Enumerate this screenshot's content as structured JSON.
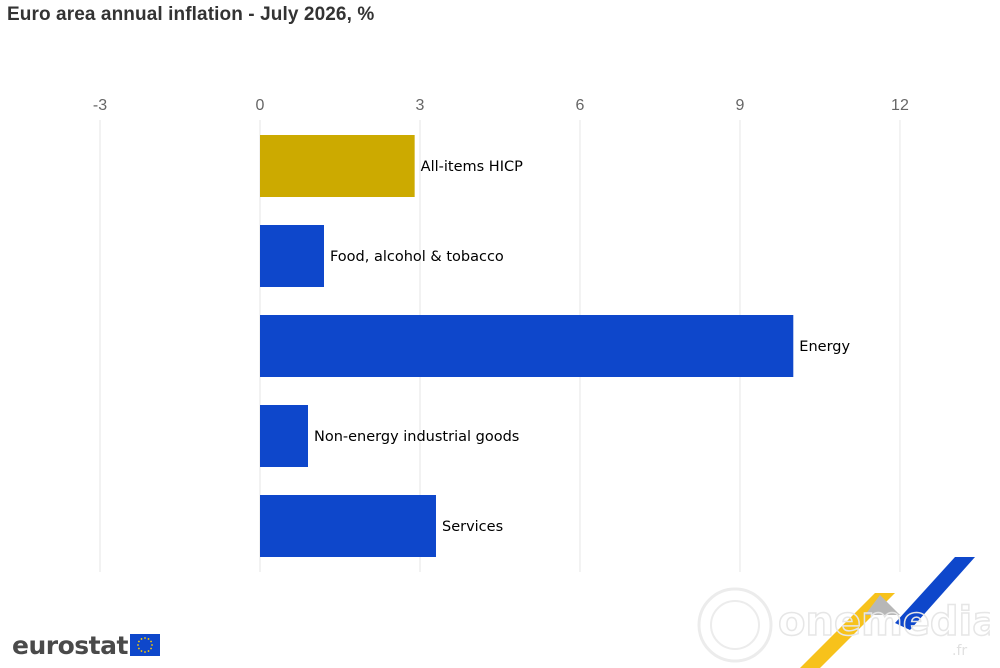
{
  "title": "Euro area annual inflation - July 2026, %",
  "chart_data": {
    "type": "bar",
    "orientation": "horizontal",
    "title": "Euro area annual inflation - July 2026, %",
    "xlabel": "",
    "ylabel": "",
    "xlim": [
      -3,
      13.5
    ],
    "x_ticks": [
      -3,
      0,
      3,
      6,
      9,
      12
    ],
    "x_tick_labels": [
      "-3",
      "0",
      "3",
      "6",
      "9",
      "12"
    ],
    "grid": "vertical",
    "legend": "none",
    "categories": [
      "All-items HICP",
      "Food, alcohol & tobacco",
      "Energy",
      "Non-energy industrial goods",
      "Services"
    ],
    "values": [
      2.9,
      1.2,
      10.0,
      0.9,
      3.3
    ],
    "colors": [
      "#ccaa00",
      "#0e47cb",
      "#0e47cb",
      "#0e47cb",
      "#0e47cb"
    ]
  },
  "branding": {
    "logo_text": "eurostat",
    "flag_icon": "eu-flag-icon",
    "watermark_text": "onemedia",
    "watermark_suffix": ".fr"
  },
  "colors": {
    "title": "#333333",
    "tick": "#666666",
    "grid": "#e6e6e6",
    "highlight": "#ccaa00",
    "bar": "#0e47cb",
    "flag_blue": "#0e47cb",
    "flag_star": "#ffcc00"
  }
}
